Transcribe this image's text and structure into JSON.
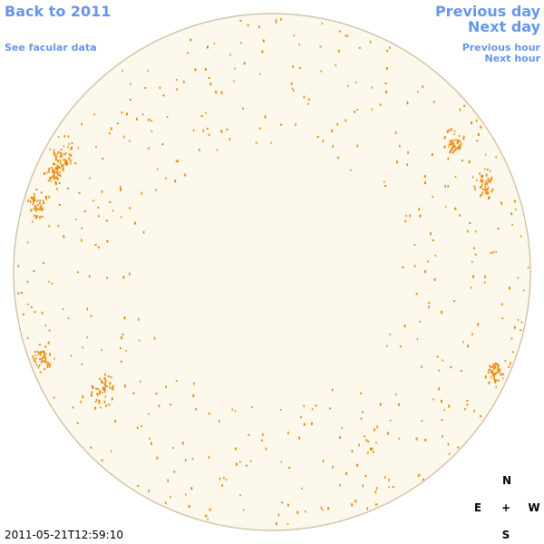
{
  "header": {
    "back_link": "Back to 2011",
    "data_link": "See facular data",
    "previous_day": "Previous day",
    "next_day": "Next day",
    "previous_hour": "Previous hour",
    "next_hour": "Next hour"
  },
  "compass": {
    "north": "N",
    "east": "E",
    "center": "+",
    "west": "W",
    "south": "S"
  },
  "timestamp": "2011-05-21T12:59:10"
}
